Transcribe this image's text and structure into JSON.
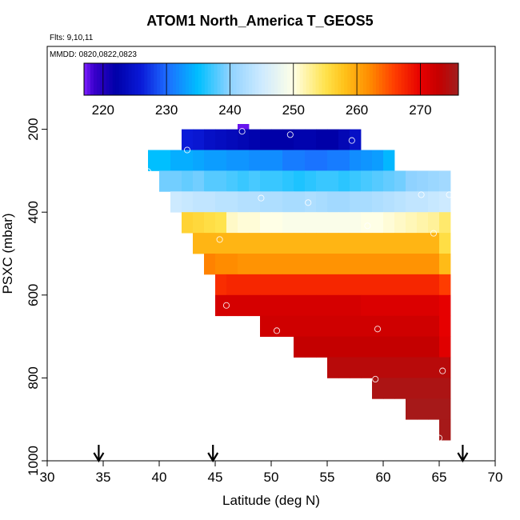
{
  "chart_data": {
    "type": "heatmap",
    "title": "ATOM1 North_America T_GEOS5",
    "flights_label": "Flts: 9,10,11",
    "dates_label": "MMDD: 0820,0822,0823",
    "xlabel": "Latitude (deg N)",
    "ylabel": "PSXC (mbar)",
    "xlim": [
      30,
      70
    ],
    "ylim": [
      1000,
      0
    ],
    "x_ticks": [
      30,
      35,
      40,
      45,
      50,
      55,
      60,
      65,
      70
    ],
    "y_ticks": [
      200,
      400,
      600,
      800,
      1000
    ],
    "colorbar": {
      "range": [
        217,
        276
      ],
      "ticks": [
        220,
        230,
        240,
        250,
        260,
        270
      ],
      "stops": [
        {
          "v": 217,
          "c": "#7f1fff"
        },
        {
          "v": 218.5,
          "c": "#3b00cc"
        },
        {
          "v": 222,
          "c": "#0000a8"
        },
        {
          "v": 226,
          "c": "#0a1ad8"
        },
        {
          "v": 230,
          "c": "#1d6bff"
        },
        {
          "v": 235,
          "c": "#00bfff"
        },
        {
          "v": 240,
          "c": "#8fd2ff"
        },
        {
          "v": 245,
          "c": "#cdeaff"
        },
        {
          "v": 250,
          "c": "#ffffe6"
        },
        {
          "v": 255,
          "c": "#ffe34d"
        },
        {
          "v": 258,
          "c": "#ffc21a"
        },
        {
          "v": 262,
          "c": "#ff8c00"
        },
        {
          "v": 266,
          "c": "#ff3c00"
        },
        {
          "v": 270,
          "c": "#e60000"
        },
        {
          "v": 273,
          "c": "#c40000"
        },
        {
          "v": 276,
          "c": "#a01e1e"
        }
      ]
    },
    "cell_width_deg": 1,
    "rows": [
      {
        "p": 175,
        "lat0": 47,
        "lat1": 48,
        "values": [
          217.5
        ]
      },
      {
        "p": 225,
        "lat0": 42,
        "lat1": 58,
        "values": [
          226,
          225.5,
          224.5,
          224,
          223.5,
          223,
          222.5,
          222,
          222,
          222,
          222.5,
          222.5,
          222,
          222,
          223,
          224.5
        ]
      },
      {
        "p": 275,
        "lat0": 39,
        "lat1": 61,
        "values": [
          235,
          235,
          234,
          234,
          233.5,
          233,
          233,
          232.5,
          232.5,
          232,
          232,
          232,
          231,
          231,
          230.5,
          230.5,
          231,
          231,
          232,
          232.5,
          233,
          234.5
        ]
      },
      {
        "p": 325,
        "lat0": 40,
        "lat1": 66,
        "values": [
          239,
          239,
          238.5,
          239,
          238,
          238,
          237.5,
          237,
          237.5,
          237,
          237,
          236.5,
          236,
          236.5,
          237,
          237,
          236.5,
          237,
          237.5,
          238,
          238.5,
          239,
          240,
          240.5,
          241,
          241.5
        ]
      },
      {
        "p": 375,
        "lat0": 41,
        "lat1": 66,
        "values": [
          245,
          244.5,
          244,
          244,
          243.5,
          243.5,
          243,
          243,
          242.5,
          242.5,
          242,
          242,
          242.5,
          242,
          241.5,
          241.5,
          242,
          242,
          242.5,
          243,
          243.5,
          244,
          244,
          244.5,
          245
        ]
      },
      {
        "p": 425,
        "lat0": 42,
        "lat1": 66,
        "values": [
          256.5,
          256,
          255.5,
          255,
          251,
          250.5,
          250.5,
          250,
          250,
          249.5,
          249.5,
          249.5,
          249.5,
          249.5,
          249.5,
          249.5,
          250,
          250,
          250.5,
          251,
          251.5,
          252,
          252.5,
          254
        ]
      },
      {
        "p": 475,
        "lat0": 43,
        "lat1": 66,
        "values": [
          259,
          259,
          259,
          259,
          259,
          259,
          259,
          259,
          259,
          259,
          259,
          259,
          259,
          259,
          259,
          259,
          259,
          259,
          259,
          259,
          259,
          259,
          255.5
        ]
      },
      {
        "p": 525,
        "lat0": 44,
        "lat1": 66,
        "values": [
          262.5,
          262,
          262,
          261.5,
          261.5,
          261.5,
          261.5,
          261.5,
          261.5,
          261.5,
          261.5,
          261.5,
          261.5,
          261.5,
          261.5,
          261.5,
          261.5,
          261.5,
          261.5,
          261.5,
          261.5,
          258.5
        ]
      },
      {
        "p": 575,
        "lat0": 45,
        "lat1": 66,
        "values": [
          267,
          267.5,
          267.5,
          267.5,
          267.5,
          267.5,
          267.5,
          267.5,
          267.5,
          267.5,
          267.5,
          267.5,
          267.5,
          267.5,
          267.5,
          267.5,
          267.5,
          267.5,
          267.5,
          267.5,
          266
        ]
      },
      {
        "p": 625,
        "lat0": 45,
        "lat1": 66,
        "values": [
          271.5,
          271.5,
          271.5,
          271.5,
          271.5,
          271.5,
          271.5,
          271.5,
          271.5,
          271.5,
          271.5,
          271.5,
          271.5,
          271,
          271,
          271,
          271,
          271,
          271,
          271,
          270
        ]
      },
      {
        "p": 675,
        "lat0": 49,
        "lat1": 66,
        "values": [
          272,
          272,
          272,
          272,
          272,
          272,
          272,
          272,
          272,
          272,
          272,
          272,
          272,
          272,
          272,
          272,
          270
        ]
      },
      {
        "p": 725,
        "lat0": 52,
        "lat1": 66,
        "values": [
          273,
          273,
          273,
          273,
          273,
          273,
          273,
          273,
          273,
          273,
          273,
          273,
          273,
          270.5
        ]
      },
      {
        "p": 775,
        "lat0": 55,
        "lat1": 66,
        "values": [
          274,
          274,
          274,
          274,
          274,
          274,
          274,
          274,
          274,
          274,
          274
        ]
      },
      {
        "p": 825,
        "lat0": 59,
        "lat1": 66,
        "values": [
          275,
          275,
          275,
          275,
          275,
          275,
          275
        ]
      },
      {
        "p": 875,
        "lat0": 62,
        "lat1": 66,
        "values": [
          275.5,
          275.5,
          275.5,
          275.5
        ]
      },
      {
        "p": 925,
        "lat0": 65,
        "lat1": 66,
        "values": [
          275.5
        ]
      }
    ],
    "obs_points": [
      {
        "lat": 47.4,
        "p": 205
      },
      {
        "lat": 51.7,
        "p": 213
      },
      {
        "lat": 57.2,
        "p": 227
      },
      {
        "lat": 42.5,
        "p": 250
      },
      {
        "lat": 39.0,
        "p": 302
      },
      {
        "lat": 49.1,
        "p": 366
      },
      {
        "lat": 53.3,
        "p": 377
      },
      {
        "lat": 63.4,
        "p": 358
      },
      {
        "lat": 65.9,
        "p": 358
      },
      {
        "lat": 58.6,
        "p": 433
      },
      {
        "lat": 64.5,
        "p": 451
      },
      {
        "lat": 45.4,
        "p": 466
      },
      {
        "lat": 46.0,
        "p": 625
      },
      {
        "lat": 50.5,
        "p": 686
      },
      {
        "lat": 59.5,
        "p": 682
      },
      {
        "lat": 59.3,
        "p": 803
      },
      {
        "lat": 65.3,
        "p": 783
      },
      {
        "lat": 65.0,
        "p": 945
      }
    ],
    "arrows_lat": [
      34.6,
      44.8,
      67.1
    ]
  }
}
